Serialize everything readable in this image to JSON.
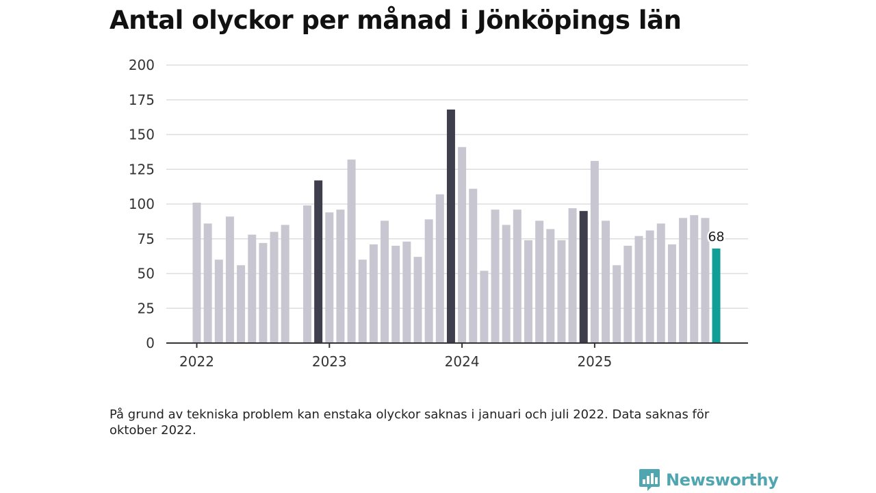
{
  "title": "Antal olyckor per månad i Jönköpings län",
  "footnote": "På grund av tekniska problem kan enstaka olyckor saknas i januari och juli 2022. Data saknas för oktober 2022.",
  "brand": {
    "name": "Newsworthy"
  },
  "colors": {
    "bar": "#c8c7d1",
    "december": "#3f3e4d",
    "latest": "#119e96",
    "grid": "#dddddd",
    "axis": "#333333",
    "brand": "#4fa6b0"
  },
  "chart_data": {
    "type": "bar",
    "title": "Antal olyckor per månad i Jönköpings län",
    "xlabel": "",
    "ylabel": "",
    "ylim": [
      0,
      200
    ],
    "yticks": [
      0,
      25,
      50,
      75,
      100,
      125,
      150,
      175,
      200
    ],
    "year_labels": [
      "2022",
      "2023",
      "2024",
      "2025"
    ],
    "highlight_label": "68",
    "months": [
      "2022-01",
      "2022-02",
      "2022-03",
      "2022-04",
      "2022-05",
      "2022-06",
      "2022-07",
      "2022-08",
      "2022-09",
      "2022-10",
      "2022-11",
      "2022-12",
      "2023-01",
      "2023-02",
      "2023-03",
      "2023-04",
      "2023-05",
      "2023-06",
      "2023-07",
      "2023-08",
      "2023-09",
      "2023-10",
      "2023-11",
      "2023-12",
      "2024-01",
      "2024-02",
      "2024-03",
      "2024-04",
      "2024-05",
      "2024-06",
      "2024-07",
      "2024-08",
      "2024-09",
      "2024-10",
      "2024-11",
      "2024-12",
      "2025-01",
      "2025-02",
      "2025-03",
      "2025-04",
      "2025-05",
      "2025-06",
      "2025-07",
      "2025-08",
      "2025-09",
      "2025-10",
      "2025-11",
      "2025-12"
    ],
    "values": [
      101,
      86,
      60,
      91,
      56,
      78,
      72,
      80,
      85,
      null,
      99,
      117,
      94,
      96,
      132,
      60,
      71,
      88,
      70,
      73,
      62,
      89,
      107,
      168,
      141,
      111,
      52,
      96,
      85,
      96,
      74,
      88,
      82,
      74,
      97,
      95,
      131,
      88,
      56,
      70,
      77,
      81,
      86,
      71,
      90,
      92,
      90,
      68
    ]
  }
}
